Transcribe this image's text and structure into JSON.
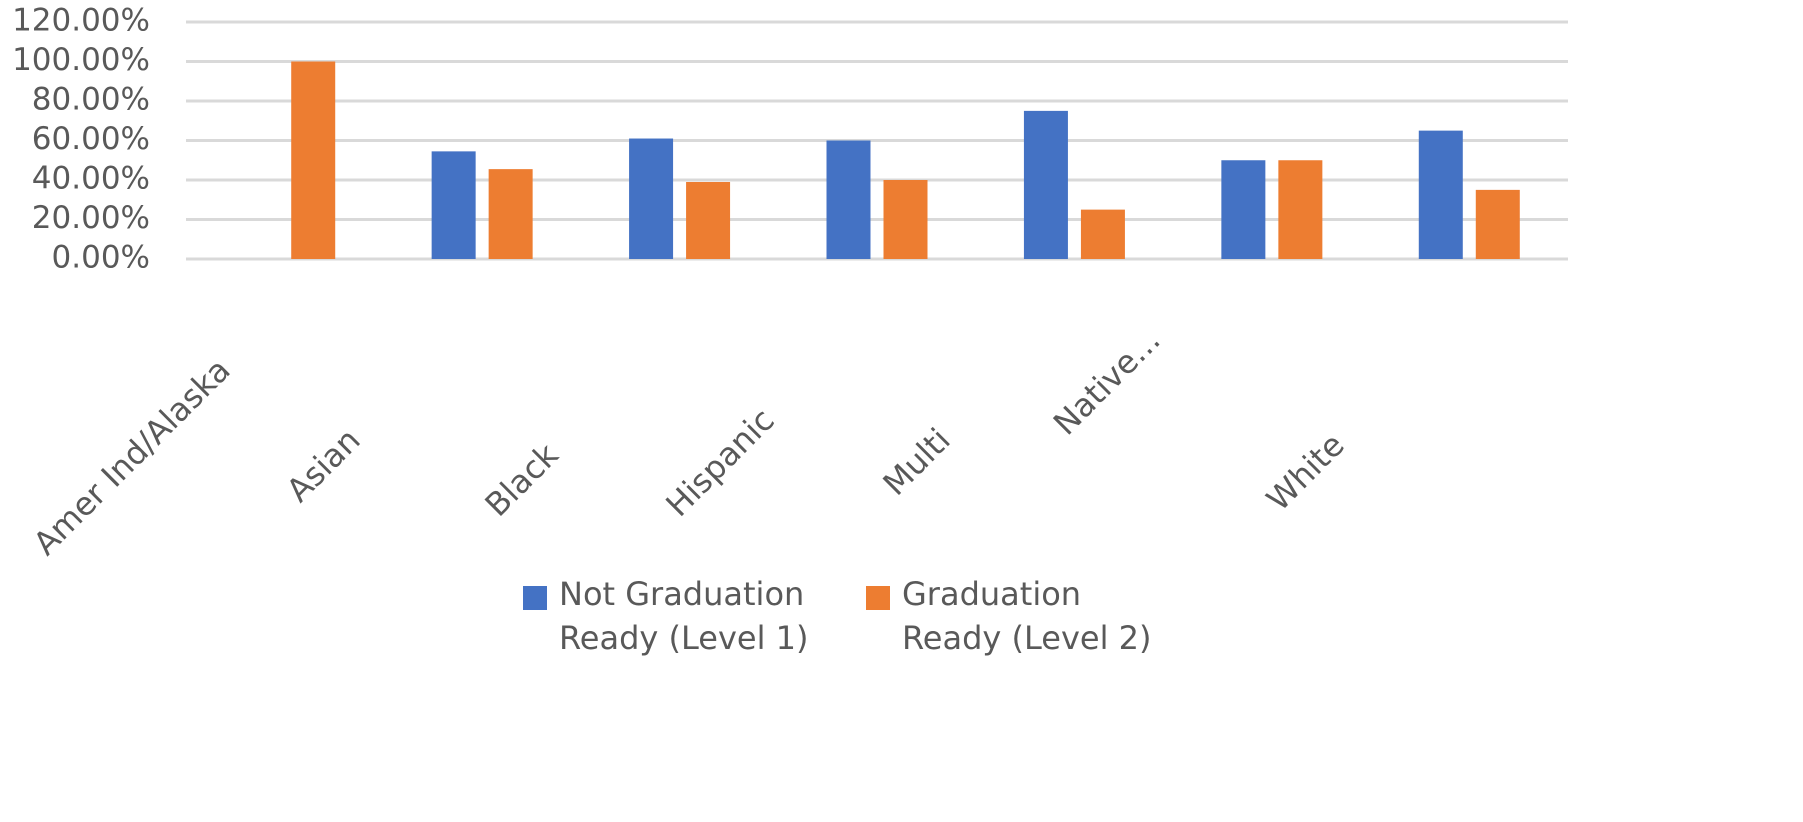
{
  "chart_data": {
    "type": "bar",
    "categories": [
      "Amer Ind/Alaska",
      "Asian",
      "Black",
      "Hispanic",
      "Multi",
      "Native...",
      "White"
    ],
    "series": [
      {
        "name": "Not Graduation Ready (Level 1)",
        "color": "#4472c4",
        "values": [
          0,
          54.5,
          61,
          60,
          75,
          50,
          65
        ]
      },
      {
        "name": "Graduation Ready (Level 2)",
        "color": "#ed7d31",
        "values": [
          100,
          45.5,
          39,
          40,
          25,
          50,
          35
        ]
      }
    ],
    "ylim": [
      0,
      120
    ],
    "yticks": [
      {
        "value": 0,
        "label": "0.00%"
      },
      {
        "value": 20,
        "label": "20.00%"
      },
      {
        "value": 40,
        "label": "40.00%"
      },
      {
        "value": 60,
        "label": "60.00%"
      },
      {
        "value": 80,
        "label": "80.00%"
      },
      {
        "value": 100,
        "label": "100.00%"
      },
      {
        "value": 120,
        "label": "120.00%"
      }
    ],
    "grid": true,
    "legend": "bottom"
  }
}
